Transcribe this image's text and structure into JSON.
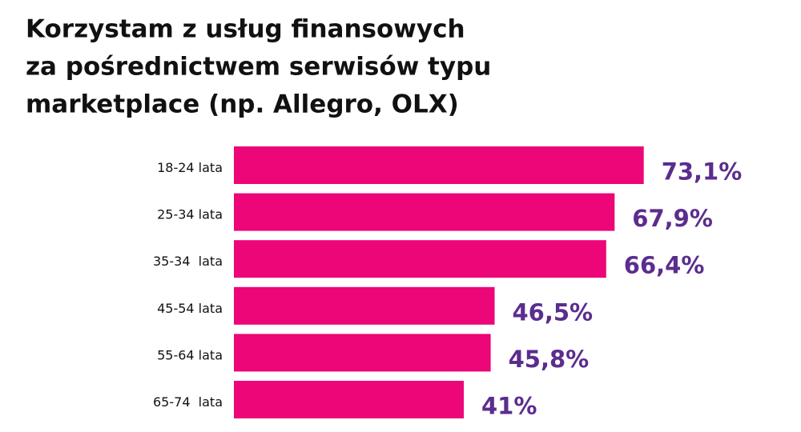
{
  "chart_data": {
    "type": "bar",
    "title": [
      "Korzystam z usług finansowych",
      "za pośrednictwem serwisów typu",
      "marketplace (np. Allegro, OLX)"
    ],
    "categories": [
      "18-24 lata",
      "25-34 lata",
      "35-34  lata",
      "45-54 lata",
      "55-64 lata",
      "65-74  lata"
    ],
    "values": [
      73.1,
      67.9,
      66.4,
      46.5,
      45.8,
      41
    ],
    "value_labels": [
      "73,1%",
      "67,9%",
      "66,4%",
      "46,5%",
      "45,8%",
      "41%"
    ],
    "color": "#ec0677",
    "label_color": "#5b2d8e"
  }
}
